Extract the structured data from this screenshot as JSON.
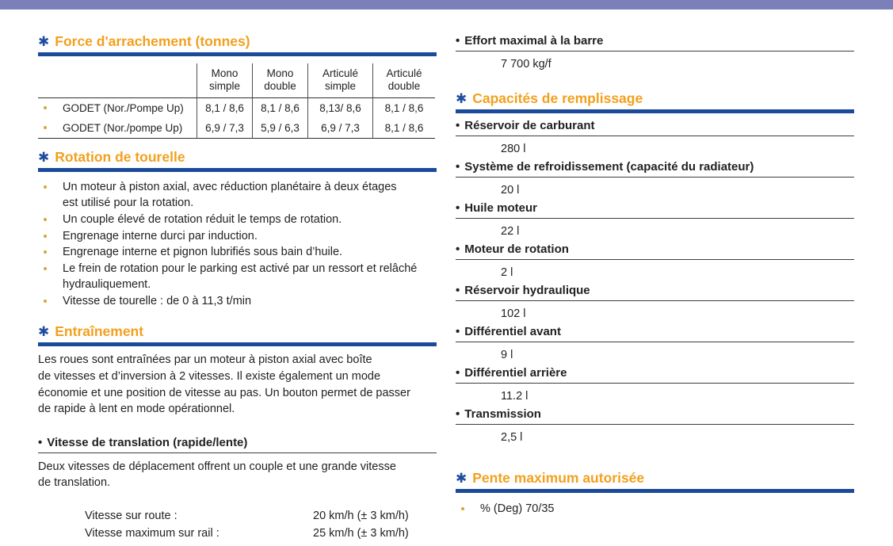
{
  "colors": {
    "top_bar": "#7b80b8",
    "heading_orange": "#f2a01e",
    "heading_blue_bar": "#1b4a9b",
    "asterisk_blue": "#1f4d9e",
    "bullet_gold": "#d9a33c",
    "text": "#242021"
  },
  "icons": {
    "asterisk": "✱",
    "bullet": "•"
  },
  "left": {
    "force": {
      "title": "Force d'arrachement (tonnes)",
      "table": {
        "headers": [
          "Mono\nsimple",
          "Mono\ndouble",
          "Articulé\nsimple",
          "Articulé\ndouble"
        ],
        "rows": [
          {
            "label": "GODET (Nor./Pompe Up)",
            "values": [
              "8,1 / 8,6",
              "8,1 / 8,6",
              "8,13/ 8,6",
              "8,1 / 8,6"
            ]
          },
          {
            "label": "GODET (Nor./pompe Up)",
            "values": [
              "6,9 / 7,3",
              "5,9 / 6,3",
              "6,9 / 7,3",
              "8,1 / 8,6"
            ]
          }
        ]
      }
    },
    "rotation": {
      "title": "Rotation de tourelle",
      "bullets": [
        "Un moteur à piston axial, avec réduction planétaire à deux étages\nest utilisé pour la rotation.",
        "Un couple élevé de rotation réduit le temps de rotation.",
        "Engrenage interne durci par induction.",
        "Engrenage interne et pignon lubrifiés sous bain d’huile.",
        "Le frein de rotation pour le parking est activé par un ressort et relâché\nhydrauliquement.",
        "Vitesse de tourelle : de 0 à 11,3 t/min"
      ]
    },
    "drive": {
      "title": "Entraînement",
      "paragraph": "Les roues sont entraînées par un moteur à piston axial avec boîte\nde vitesses et d’inversion à 2 vitesses. Il existe également un mode\néconomie et une position de vitesse au pas. Un bouton permet de passer\nde rapide à lent en mode opérationnel.",
      "subheading": "Vitesse de translation (rapide/lente)",
      "subparagraph": "Deux vitesses de déplacement offrent un couple et une grande vitesse\nde translation.",
      "speeds": [
        {
          "label": "Vitesse sur route :",
          "value": "20 km/h (± 3 km/h)"
        },
        {
          "label": "Vitesse maximum sur rail :",
          "value": "25 km/h (± 3 km/h)"
        }
      ]
    }
  },
  "right": {
    "effort": {
      "label": "Effort maximal à la barre",
      "value": "7 700 kg/f"
    },
    "capacities": {
      "title": "Capacités de remplissage",
      "items": [
        {
          "label": "Réservoir de carburant",
          "value": "280 l"
        },
        {
          "label": "Système de refroidissement (capacité du radiateur)",
          "value": "20 l"
        },
        {
          "label": "Huile moteur",
          "value": "22 l"
        },
        {
          "label": "Moteur de rotation",
          "value": "2 l"
        },
        {
          "label": "Réservoir hydraulique",
          "value": "102 l"
        },
        {
          "label": "Différentiel avant",
          "value": "9 l"
        },
        {
          "label": "Différentiel arrière",
          "value": "11.2 l"
        },
        {
          "label": "Transmission",
          "value": "2,5 l"
        }
      ]
    },
    "slope": {
      "title": "Pente maximum autorisée",
      "bullet": "% (Deg) 70/35"
    }
  }
}
